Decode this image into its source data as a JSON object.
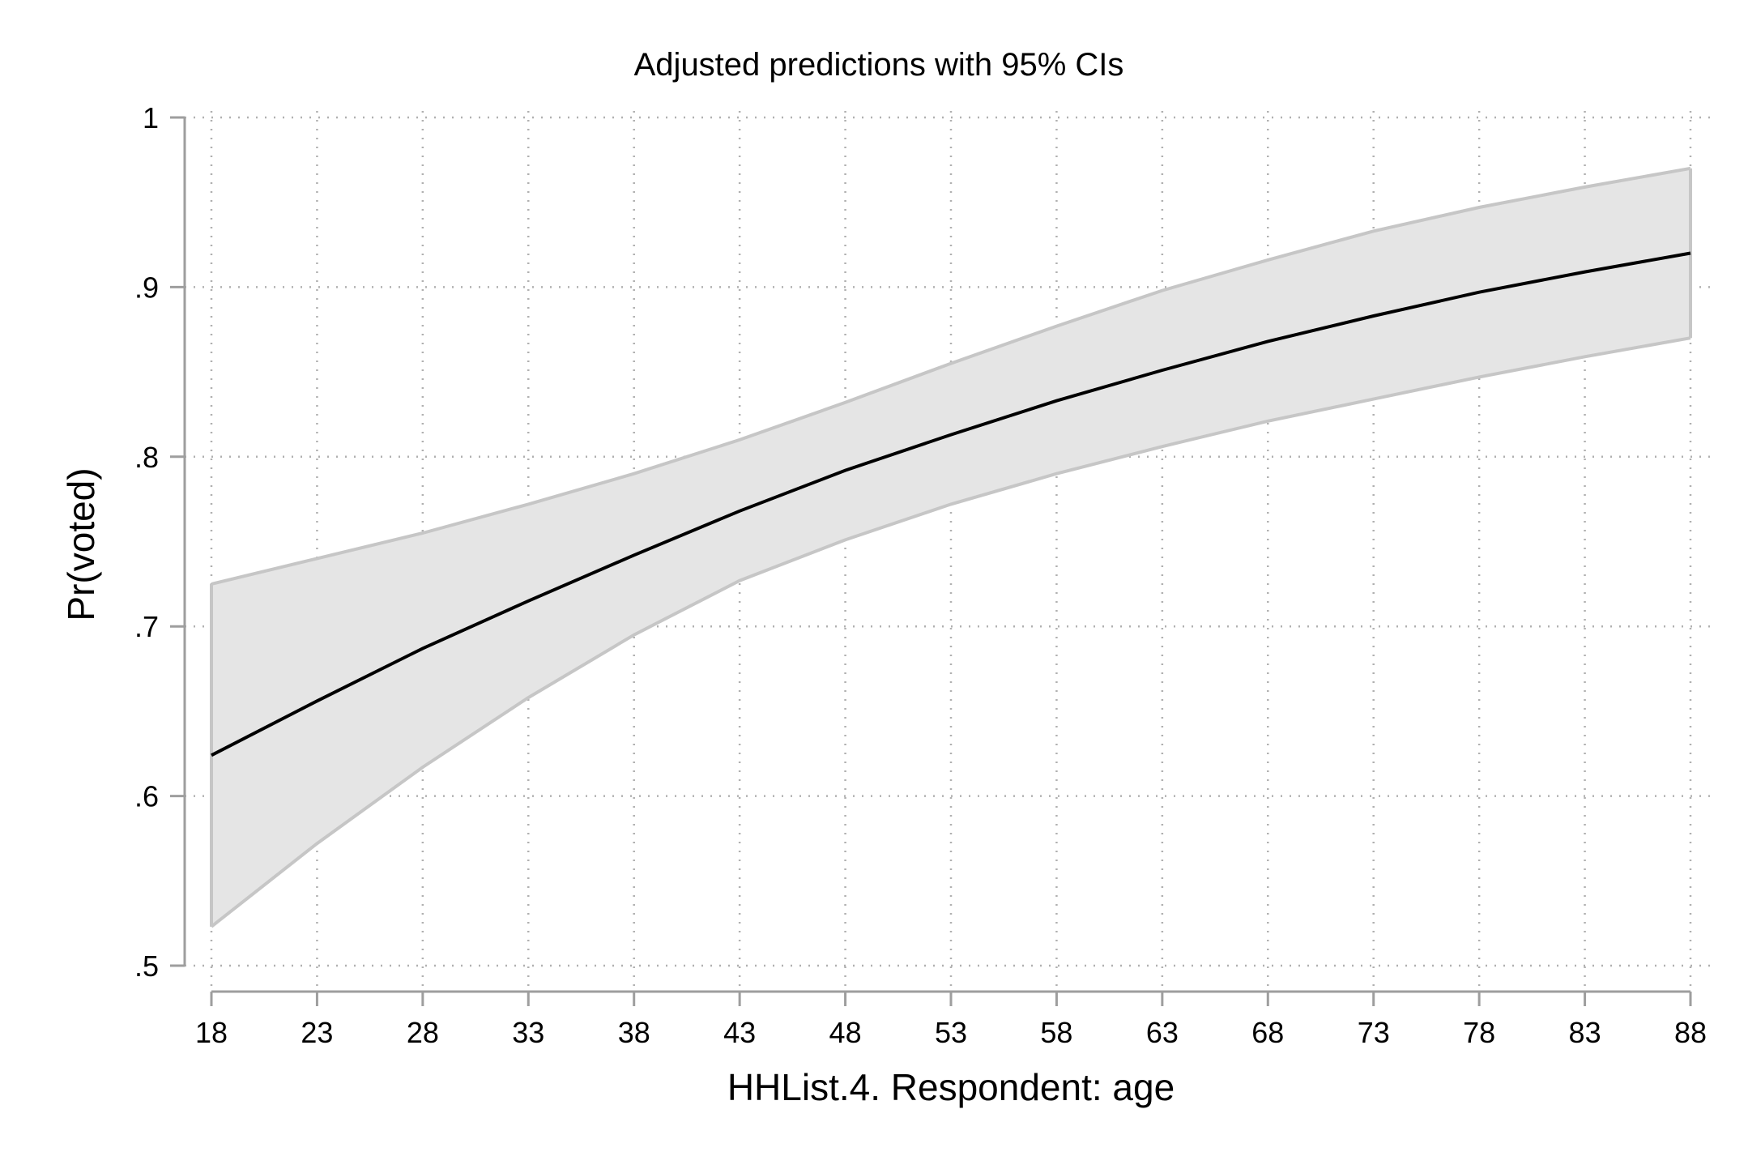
{
  "chart_data": {
    "type": "line",
    "title": "Adjusted predictions with 95% CIs",
    "xlabel": "HHList.4. Respondent: age",
    "ylabel": "Pr(voted)",
    "x": [
      18,
      23,
      28,
      33,
      38,
      43,
      48,
      53,
      58,
      63,
      68,
      73,
      78,
      83,
      88
    ],
    "x_ticks": [
      18,
      23,
      28,
      33,
      38,
      43,
      48,
      53,
      58,
      63,
      68,
      73,
      78,
      83,
      88
    ],
    "x_tick_labels": [
      "18",
      "23",
      "28",
      "33",
      "38",
      "43",
      "48",
      "53",
      "58",
      "63",
      "68",
      "73",
      "78",
      "83",
      "88"
    ],
    "y_ticks": [
      0.5,
      0.6,
      0.7,
      0.8,
      0.9,
      1.0
    ],
    "y_tick_labels": [
      ".5",
      ".6",
      ".7",
      ".8",
      ".9",
      "1"
    ],
    "xlim": [
      18,
      88
    ],
    "ylim": [
      0.5,
      1.0
    ],
    "grid": true,
    "legend": "none",
    "series": [
      {
        "values": [
          0.624,
          0.656,
          0.687,
          0.715,
          0.742,
          0.768,
          0.792,
          0.813,
          0.833,
          0.851,
          0.868,
          0.883,
          0.897,
          0.909,
          0.92
        ],
        "ci_lower": [
          0.523,
          0.572,
          0.617,
          0.658,
          0.695,
          0.727,
          0.751,
          0.772,
          0.79,
          0.806,
          0.821,
          0.834,
          0.847,
          0.859,
          0.87
        ],
        "ci_upper": [
          0.725,
          0.74,
          0.755,
          0.772,
          0.79,
          0.81,
          0.832,
          0.855,
          0.877,
          0.898,
          0.916,
          0.933,
          0.947,
          0.959,
          0.97
        ]
      }
    ],
    "colors": {
      "line": "#000000",
      "ci_fill": "#e5e5e5",
      "ci_edge": "#c6c6c6",
      "grid": "#b0b0b0",
      "axis": "#9e9e9e"
    }
  }
}
